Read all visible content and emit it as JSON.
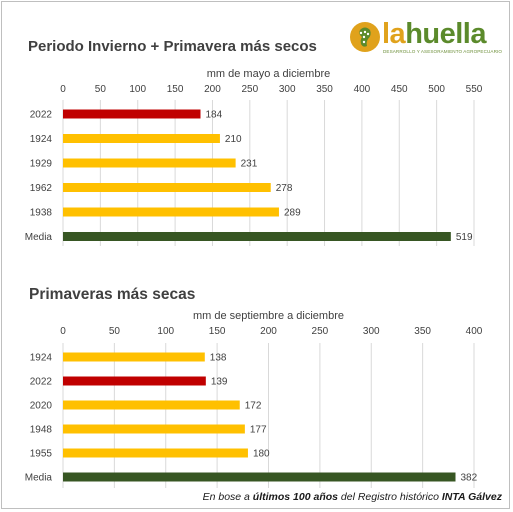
{
  "logo": {
    "brand_prefix": "la",
    "brand_suffix": "huella",
    "tagline": "DESARROLLO Y ASESORAMIENTO AGROPECUARIO"
  },
  "footnote": {
    "t1": "En bose a ",
    "t2": "últimos 100 años",
    "t3": " del Registro histórico ",
    "t4": "INTA Gálvez"
  },
  "colors": {
    "highlight": "#c00000",
    "normal": "#ffc000",
    "media": "#375623",
    "grid": "#d9d9d9"
  },
  "chart_data": [
    {
      "type": "bar",
      "orientation": "horizontal",
      "title": "Periodo Invierno + Primavera más secos",
      "xlabel": "mm de mayo a diciembre",
      "xlim": [
        0,
        550
      ],
      "xticks": [
        0,
        50,
        100,
        150,
        200,
        250,
        300,
        350,
        400,
        450,
        500,
        550
      ],
      "grid": true,
      "categories": [
        "2022",
        "1924",
        "1929",
        "1962",
        "1938",
        "Media"
      ],
      "values": [
        184,
        210,
        231,
        278,
        289,
        519
      ],
      "bar_colors": [
        "#c00000",
        "#ffc000",
        "#ffc000",
        "#ffc000",
        "#ffc000",
        "#375623"
      ]
    },
    {
      "type": "bar",
      "orientation": "horizontal",
      "title": "Primaveras más secas",
      "xlabel": "mm de septiembre a diciembre",
      "xlim": [
        0,
        400
      ],
      "xticks": [
        0,
        50,
        100,
        150,
        200,
        250,
        300,
        350,
        400
      ],
      "grid": true,
      "categories": [
        "1924",
        "2022",
        "2020",
        "1948",
        "1955",
        "Media"
      ],
      "values": [
        138,
        139,
        172,
        177,
        180,
        382
      ],
      "bar_colors": [
        "#ffc000",
        "#c00000",
        "#ffc000",
        "#ffc000",
        "#ffc000",
        "#375623"
      ]
    }
  ]
}
